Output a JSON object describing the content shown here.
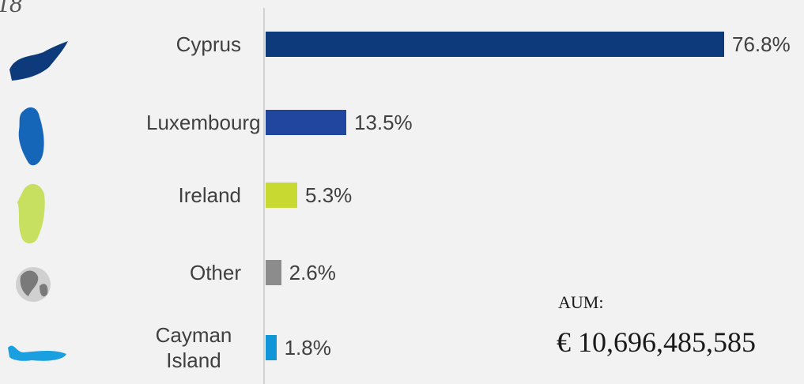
{
  "chart_data": {
    "type": "bar",
    "orientation": "horizontal",
    "title": "18",
    "categories": [
      "Cyprus",
      "Luxembourg",
      "Ireland",
      "Other",
      "Cayman Island"
    ],
    "values": [
      76.8,
      13.5,
      5.3,
      2.6,
      1.8
    ],
    "value_labels": [
      "76.8%",
      "13.5%",
      "5.3%",
      "2.6%",
      "1.8%"
    ],
    "colors": [
      "#0d3a7a",
      "#2146a0",
      "#c8d932",
      "#8c8c8c",
      "#0f96d8"
    ],
    "annotations": [
      "AUM:",
      "€ 10,696,485,585"
    ]
  }
}
